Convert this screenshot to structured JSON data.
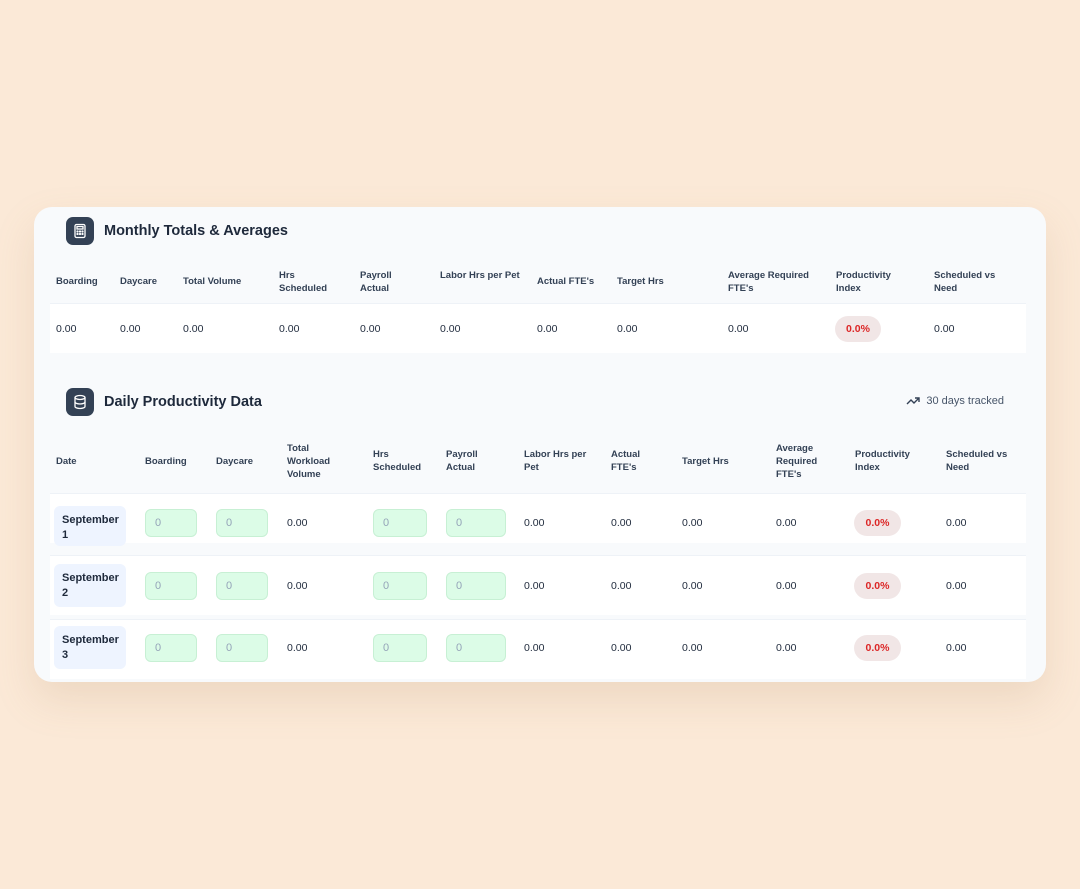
{
  "monthly": {
    "title": "Monthly Totals & Averages",
    "headers": [
      "Boarding",
      "Daycare",
      "Total Volume",
      "Hrs Scheduled",
      "Payroll Actual",
      "Labor Hrs per Pet",
      "Actual FTE's",
      "Target Hrs",
      "Average Required FTE's",
      "Productivity Index",
      "Scheduled vs Need"
    ],
    "values": [
      "0.00",
      "0.00",
      "0.00",
      "0.00",
      "0.00",
      "0.00",
      "0.00",
      "0.00",
      "0.00",
      "0.0%",
      "0.00"
    ]
  },
  "daily": {
    "title": "Daily Productivity Data",
    "tracked": "30 days tracked",
    "headers": [
      "Date",
      "Boarding",
      "Daycare",
      "Total Workload Volume",
      "Hrs Scheduled",
      "Payroll Actual",
      "Labor Hrs per Pet",
      "Actual FTE's",
      "Target Hrs",
      "Average Required FTE's",
      "Productivity Index",
      "Scheduled vs Need"
    ],
    "rows": [
      {
        "date": "September 1",
        "boarding": "0",
        "daycare": "0",
        "total": "0.00",
        "hrs": "0",
        "payroll": "0",
        "labor": "0.00",
        "fte": "0.00",
        "target": "0.00",
        "avg": "0.00",
        "index": "0.0%",
        "svn": "0.00"
      },
      {
        "date": "September 2",
        "boarding": "0",
        "daycare": "0",
        "total": "0.00",
        "hrs": "0",
        "payroll": "0",
        "labor": "0.00",
        "fte": "0.00",
        "target": "0.00",
        "avg": "0.00",
        "index": "0.0%",
        "svn": "0.00"
      },
      {
        "date": "September 3",
        "boarding": "0",
        "daycare": "0",
        "total": "0.00",
        "hrs": "0",
        "payroll": "0",
        "labor": "0.00",
        "fte": "0.00",
        "target": "0.00",
        "avg": "0.00",
        "index": "0.0%",
        "svn": "0.00"
      }
    ]
  },
  "icons": {
    "monthly": "calculator-icon",
    "daily": "database-icon",
    "tracked": "trending-up-icon"
  },
  "colors": {
    "accent_bad": "#dc2626",
    "input_bg": "#dcfce7",
    "icon_bg": "#334155"
  }
}
